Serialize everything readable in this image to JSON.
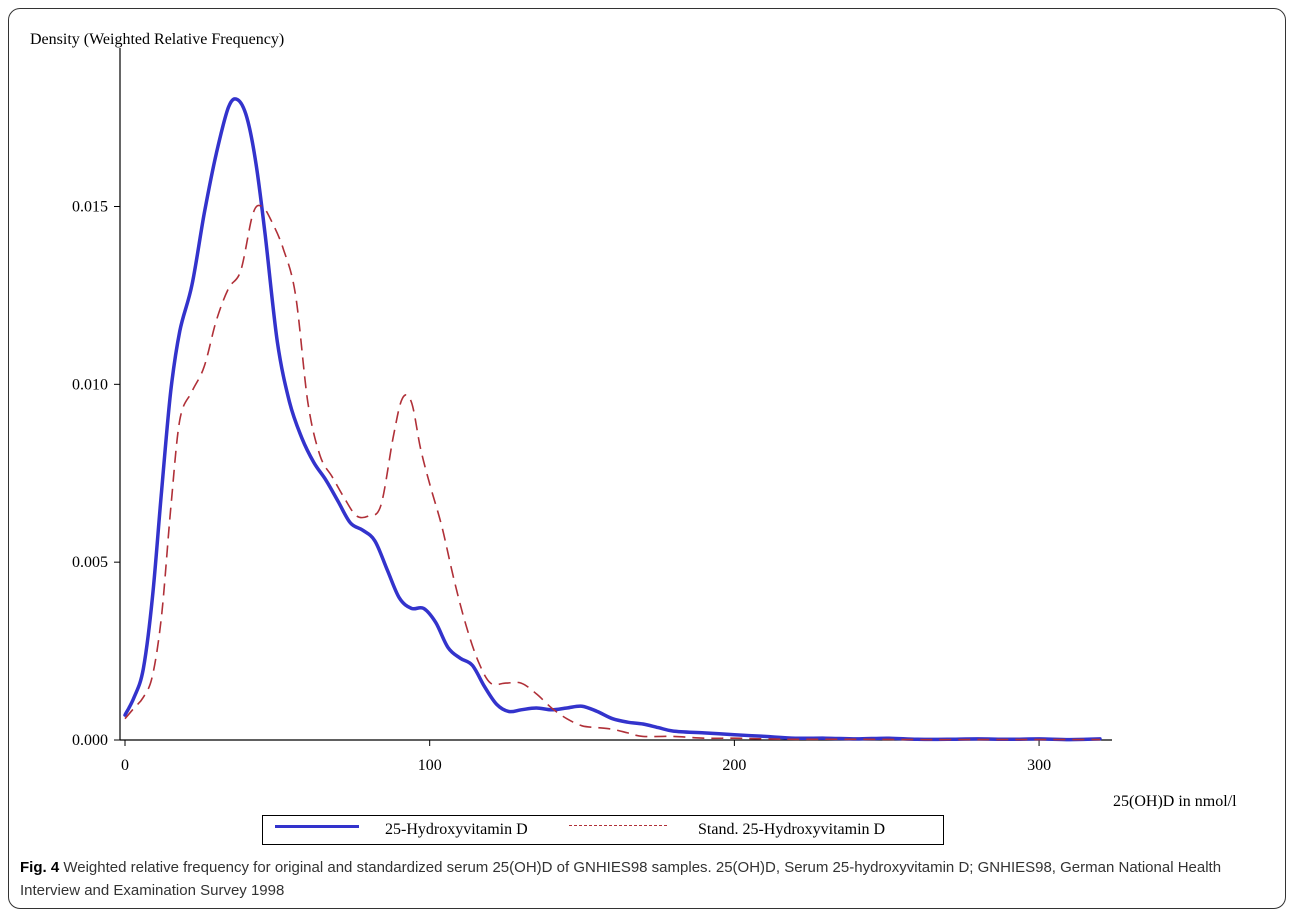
{
  "chart_data": {
    "type": "line",
    "ylabel": "Density (Weighted Relative Frequency)",
    "xlabel": "25(OH)D in nmol/l",
    "xlim": [
      0,
      320
    ],
    "ylim": [
      0,
      0.0185
    ],
    "x_ticks": [
      {
        "value": 0,
        "label": "0"
      },
      {
        "value": 100,
        "label": "100"
      },
      {
        "value": 200,
        "label": "200"
      },
      {
        "value": 300,
        "label": "300"
      }
    ],
    "y_ticks": [
      {
        "value": 0,
        "label": "0.000"
      },
      {
        "value": 0.005,
        "label": "0.005"
      },
      {
        "value": 0.01,
        "label": "0.010"
      },
      {
        "value": 0.015,
        "label": "0.015"
      }
    ],
    "legend_position": "bottom",
    "series": [
      {
        "name": "25-Hydroxyvitamin D",
        "color": "#3333cc",
        "style": "solid",
        "x": [
          0,
          3,
          6,
          9,
          12,
          15,
          18,
          22,
          26,
          30,
          34,
          37,
          40,
          43,
          46,
          50,
          54,
          58,
          62,
          66,
          70,
          74,
          78,
          82,
          86,
          90,
          94,
          98,
          102,
          106,
          110,
          114,
          118,
          122,
          126,
          130,
          135,
          140,
          145,
          150,
          155,
          160,
          165,
          170,
          175,
          180,
          190,
          200,
          210,
          220,
          230,
          240,
          250,
          260,
          270,
          280,
          290,
          300,
          310,
          320
        ],
        "y": [
          0.0007,
          0.0012,
          0.002,
          0.004,
          0.007,
          0.0098,
          0.0115,
          0.0128,
          0.0148,
          0.0165,
          0.0178,
          0.018,
          0.0175,
          0.0162,
          0.0142,
          0.0112,
          0.0095,
          0.0085,
          0.0078,
          0.0073,
          0.0067,
          0.0061,
          0.0059,
          0.0056,
          0.0048,
          0.004,
          0.0037,
          0.0037,
          0.0033,
          0.0026,
          0.0023,
          0.0021,
          0.0015,
          0.001,
          0.0008,
          0.00085,
          0.0009,
          0.00085,
          0.0009,
          0.00095,
          0.0008,
          0.0006,
          0.0005,
          0.00045,
          0.00035,
          0.00025,
          0.0002,
          0.00015,
          0.0001,
          5e-05,
          5e-05,
          3e-05,
          5e-05,
          2e-05,
          2e-05,
          3e-05,
          2e-05,
          3e-05,
          1e-05,
          3e-05
        ]
      },
      {
        "name": "Stand. 25-Hydroxyvitamin D",
        "color": "#b03038",
        "style": "dashed",
        "x": [
          0,
          3,
          6,
          9,
          12,
          15,
          18,
          22,
          26,
          30,
          34,
          38,
          42,
          45,
          48,
          52,
          56,
          60,
          64,
          68,
          72,
          76,
          80,
          84,
          88,
          91,
          94,
          97,
          100,
          104,
          108,
          112,
          116,
          120,
          125,
          130,
          135,
          140,
          145,
          150,
          155,
          160,
          165,
          170,
          180,
          190,
          200,
          210,
          220,
          240,
          260,
          280,
          300,
          320
        ],
        "y": [
          0.0006,
          0.0009,
          0.0012,
          0.0018,
          0.0035,
          0.0065,
          0.009,
          0.0098,
          0.0105,
          0.0118,
          0.0127,
          0.0132,
          0.0148,
          0.015,
          0.0146,
          0.0138,
          0.0125,
          0.0095,
          0.008,
          0.0074,
          0.0068,
          0.0063,
          0.0063,
          0.0066,
          0.0085,
          0.0096,
          0.0095,
          0.0082,
          0.0072,
          0.006,
          0.0045,
          0.0032,
          0.0022,
          0.0016,
          0.0016,
          0.0016,
          0.0013,
          0.0009,
          0.0006,
          0.0004,
          0.00035,
          0.0003,
          0.0002,
          0.0001,
          0.0001,
          5e-05,
          5e-05,
          3e-05,
          2e-05,
          2e-05,
          1e-05,
          1e-05,
          1e-05,
          1e-05
        ]
      }
    ]
  },
  "caption": {
    "label": "Fig. 4",
    "text": " Weighted relative frequency for original and standardized serum 25(OH)D of GNHIES98 samples. 25(OH)D, Serum 25-hydroxyvitamin D; GNHIES98, German National Health Interview and Examination Survey 1998"
  }
}
